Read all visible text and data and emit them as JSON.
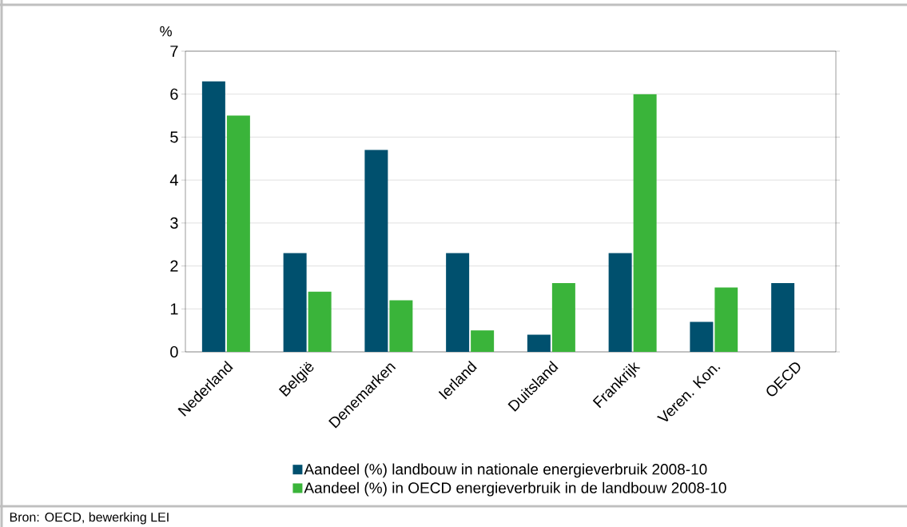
{
  "chart_data": {
    "type": "bar",
    "ylabel": "%",
    "categories": [
      "Nederland",
      "België",
      "Denemarken",
      "Ierland",
      "Duitsland",
      "Frankrijk",
      "Veren. Kon.",
      "OECD"
    ],
    "series": [
      {
        "name": "Aandeel (%)  landbouw in nationale energieverbruik 2008-10",
        "color": "#00506e",
        "values": [
          6.3,
          2.3,
          4.7,
          2.3,
          0.4,
          2.3,
          0.7,
          1.6
        ]
      },
      {
        "name": "Aandeel (%) in OECD energieverbruik in de landbouw 2008-10",
        "color": "#3ab43a",
        "values": [
          5.5,
          1.4,
          1.2,
          0.5,
          1.6,
          6.0,
          1.5,
          null
        ]
      }
    ],
    "ylim": [
      0,
      7
    ],
    "yticks": [
      0,
      1,
      2,
      3,
      4,
      5,
      6,
      7
    ],
    "grid": "y",
    "legend": "bottom",
    "annotations": [
      "Bron: OECD, bewerking LEI"
    ]
  }
}
